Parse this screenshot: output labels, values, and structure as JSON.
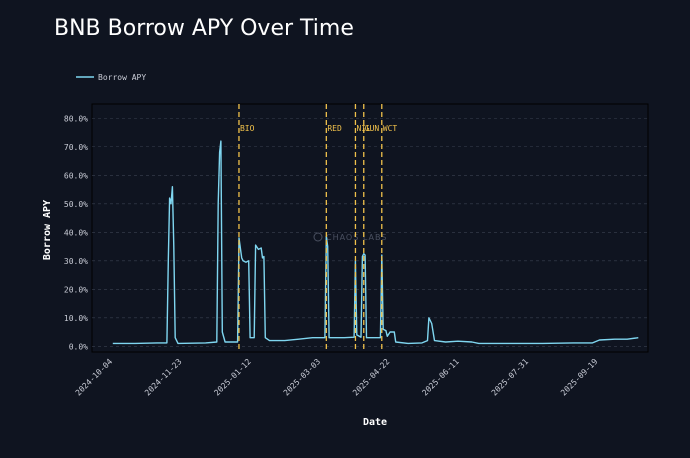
{
  "colors": {
    "background": "#0f1420",
    "line": "#7fd6f0",
    "event": "#f0c14b",
    "grid": "#3a4050"
  },
  "chart_data": {
    "type": "line",
    "title": "BNB Borrow APY Over Time",
    "xlabel": "Date",
    "ylabel": "Borrow APY",
    "legend": {
      "position": "top-left",
      "entries": [
        "Borrow APY"
      ]
    },
    "grid": "horizontal-dashed",
    "xlim": [
      "2024-09-19",
      "2025-10-25"
    ],
    "ylim": [
      -2,
      85
    ],
    "x_ticks": [
      "2024-10-04",
      "2024-11-23",
      "2025-01-12",
      "2025-03-03",
      "2025-04-22",
      "2025-06-11",
      "2025-07-31",
      "2025-09-19"
    ],
    "y_ticks": [
      "0.0%",
      "10.0%",
      "20.0%",
      "30.0%",
      "40.0%",
      "50.0%",
      "60.0%",
      "70.0%",
      "80.0%"
    ],
    "y_tick_values": [
      0,
      10,
      20,
      30,
      40,
      50,
      60,
      70,
      80
    ],
    "events": [
      {
        "label": "BIO",
        "date": "2025-01-03"
      },
      {
        "label": "RED",
        "date": "2025-03-07"
      },
      {
        "label": "NIL",
        "date": "2025-03-28"
      },
      {
        "label": "GUN",
        "date": "2025-04-03"
      },
      {
        "label": "WCT",
        "date": "2025-04-16"
      }
    ],
    "watermark": "CHAOS LABS",
    "series": [
      {
        "name": "Borrow APY",
        "points": [
          [
            "2024-10-04",
            1.0
          ],
          [
            "2024-10-20",
            1.0
          ],
          [
            "2024-11-05",
            1.2
          ],
          [
            "2024-11-12",
            1.2
          ],
          [
            "2024-11-13",
            30.0
          ],
          [
            "2024-11-14",
            52.0
          ],
          [
            "2024-11-15",
            50.0
          ],
          [
            "2024-11-16",
            56.0
          ],
          [
            "2024-11-17",
            35.0
          ],
          [
            "2024-11-18",
            3.0
          ],
          [
            "2024-11-20",
            1.0
          ],
          [
            "2024-12-10",
            1.2
          ],
          [
            "2024-12-18",
            1.5
          ],
          [
            "2024-12-19",
            50.0
          ],
          [
            "2024-12-20",
            68.0
          ],
          [
            "2024-12-21",
            72.0
          ],
          [
            "2024-12-22",
            5.0
          ],
          [
            "2024-12-24",
            1.5
          ],
          [
            "2025-01-02",
            1.5
          ],
          [
            "2025-01-03",
            38.0
          ],
          [
            "2025-01-05",
            31.0
          ],
          [
            "2025-01-06",
            30.0
          ],
          [
            "2025-01-08",
            29.5
          ],
          [
            "2025-01-10",
            30.0
          ],
          [
            "2025-01-11",
            3.0
          ],
          [
            "2025-01-14",
            3.0
          ],
          [
            "2025-01-15",
            35.5
          ],
          [
            "2025-01-17",
            34.0
          ],
          [
            "2025-01-19",
            34.5
          ],
          [
            "2025-01-20",
            31.0
          ],
          [
            "2025-01-21",
            31.5
          ],
          [
            "2025-01-22",
            3.0
          ],
          [
            "2025-01-25",
            2.0
          ],
          [
            "2025-02-05",
            2.0
          ],
          [
            "2025-02-15",
            2.5
          ],
          [
            "2025-02-25",
            3.0
          ],
          [
            "2025-03-06",
            3.0
          ],
          [
            "2025-03-07",
            38.5
          ],
          [
            "2025-03-08",
            35.0
          ],
          [
            "2025-03-09",
            3.0
          ],
          [
            "2025-03-20",
            3.0
          ],
          [
            "2025-03-27",
            3.2
          ],
          [
            "2025-03-28",
            30.0
          ],
          [
            "2025-03-29",
            4.0
          ],
          [
            "2025-04-01",
            3.2
          ],
          [
            "2025-04-02",
            31.5
          ],
          [
            "2025-04-03",
            32.5
          ],
          [
            "2025-04-04",
            32.0
          ],
          [
            "2025-04-05",
            3.0
          ],
          [
            "2025-04-14",
            3.0
          ],
          [
            "2025-04-15",
            3.0
          ],
          [
            "2025-04-16",
            32.0
          ],
          [
            "2025-04-17",
            6.0
          ],
          [
            "2025-04-19",
            5.5
          ],
          [
            "2025-04-20",
            3.5
          ],
          [
            "2025-04-22",
            5.0
          ],
          [
            "2025-04-25",
            5.0
          ],
          [
            "2025-04-26",
            1.5
          ],
          [
            "2025-05-05",
            1.0
          ],
          [
            "2025-05-15",
            1.2
          ],
          [
            "2025-05-19",
            2.0
          ],
          [
            "2025-05-20",
            10.0
          ],
          [
            "2025-05-22",
            8.0
          ],
          [
            "2025-05-24",
            2.0
          ],
          [
            "2025-06-01",
            1.5
          ],
          [
            "2025-06-10",
            1.8
          ],
          [
            "2025-06-20",
            1.5
          ],
          [
            "2025-06-25",
            1.0
          ],
          [
            "2025-07-15",
            1.0
          ],
          [
            "2025-08-10",
            1.0
          ],
          [
            "2025-09-01",
            1.2
          ],
          [
            "2025-09-15",
            1.2
          ],
          [
            "2025-09-20",
            2.2
          ],
          [
            "2025-10-01",
            2.5
          ],
          [
            "2025-10-10",
            2.5
          ],
          [
            "2025-10-18",
            3.0
          ]
        ]
      }
    ]
  }
}
